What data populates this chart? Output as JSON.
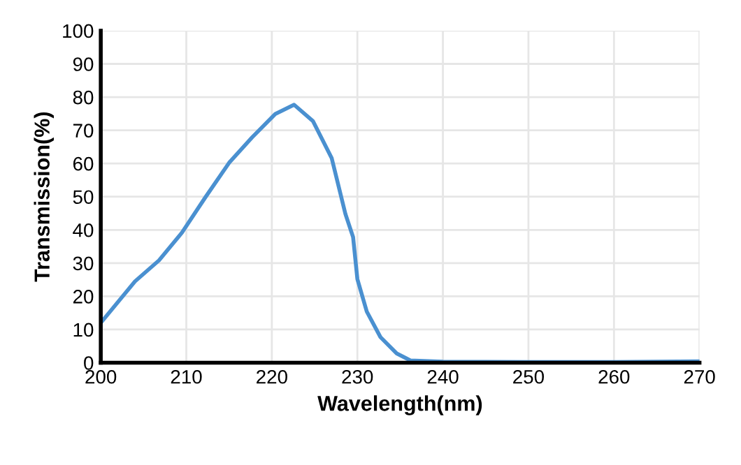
{
  "chart_data": {
    "type": "line",
    "xlabel": "Wavelength(nm)",
    "ylabel": "Transmission(%)",
    "x": [
      200,
      204,
      206.8,
      209.5,
      212.2,
      215,
      217.7,
      220.4,
      222.6,
      224.8,
      227,
      228.6,
      229.5,
      230,
      231.1,
      232.7,
      234.6,
      236.2,
      240,
      250,
      260,
      270
    ],
    "series": [
      {
        "color": "#4a90d0",
        "values": [
          12,
          24.5,
          30.8,
          39.2,
          49.7,
          60.2,
          67.9,
          74.9,
          77.7,
          72.8,
          61.6,
          44.8,
          37.8,
          25.2,
          15.4,
          7.7,
          2.8,
          0.7,
          0.3,
          0.2,
          0.2,
          0.4
        ]
      }
    ],
    "xlim": [
      200,
      270
    ],
    "xticks": [
      200,
      210,
      220,
      230,
      240,
      250,
      260,
      270
    ],
    "ylim": [
      0,
      100
    ],
    "yticks": [
      0,
      10,
      20,
      30,
      40,
      50,
      60,
      70,
      80,
      90,
      100
    ],
    "grid": true,
    "legend": false,
    "marker": "none",
    "line_style": "solid"
  }
}
